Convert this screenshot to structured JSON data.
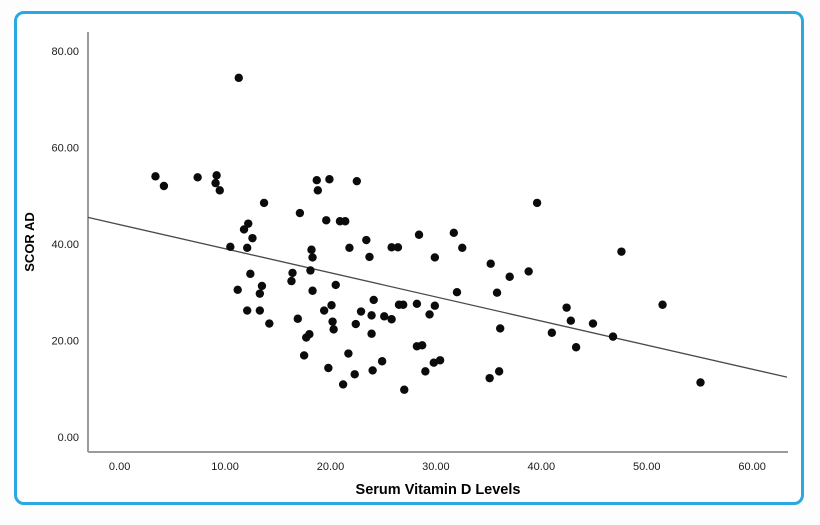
{
  "figure": {
    "border_color": "#29a9e0",
    "background": "#ffffff"
  },
  "chart_data": {
    "type": "scatter",
    "title": "",
    "xlabel": "Serum Vitamin D Levels",
    "ylabel": "SCOR AD",
    "grid": false,
    "legend": null,
    "point_color": "#0b0b0b",
    "axis_color": "#9b9b9b",
    "xlim": [
      -3.0,
      63.4
    ],
    "ylim": [
      -3.1,
      83.9
    ],
    "x_ticks": {
      "values": [
        0,
        10,
        20,
        30,
        40,
        50,
        60
      ],
      "labels": [
        "0.00",
        "10.00",
        "20.00",
        "30.00",
        "40.00",
        "50.00",
        "60.00"
      ]
    },
    "y_ticks": {
      "values": [
        0,
        20,
        40,
        60,
        80
      ],
      "labels": [
        "0.00",
        "20.00",
        "40.00",
        "60.00",
        "80.00"
      ]
    },
    "trend_line": {
      "x1": -3.0,
      "y1": 45.5,
      "x2": 63.3,
      "y2": 12.4,
      "color": "#4a4a4a"
    },
    "points": [
      [
        3.4,
        54.0
      ],
      [
        4.2,
        52.0
      ],
      [
        7.4,
        53.8
      ],
      [
        9.2,
        54.2
      ],
      [
        9.1,
        52.6
      ],
      [
        9.5,
        51.1
      ],
      [
        11.3,
        74.4
      ],
      [
        10.5,
        39.4
      ],
      [
        12.1,
        39.2
      ],
      [
        11.8,
        43.0
      ],
      [
        12.2,
        44.2
      ],
      [
        12.6,
        41.2
      ],
      [
        13.7,
        48.5
      ],
      [
        17.1,
        46.4
      ],
      [
        11.2,
        30.5
      ],
      [
        12.4,
        33.8
      ],
      [
        13.5,
        31.3
      ],
      [
        13.3,
        29.7
      ],
      [
        12.1,
        26.2
      ],
      [
        13.3,
        26.2
      ],
      [
        14.2,
        23.5
      ],
      [
        16.4,
        34.0
      ],
      [
        16.3,
        32.3
      ],
      [
        16.9,
        24.5
      ],
      [
        17.7,
        20.6
      ],
      [
        18.0,
        21.3
      ],
      [
        17.5,
        16.9
      ],
      [
        18.3,
        30.3
      ],
      [
        18.1,
        34.5
      ],
      [
        18.2,
        38.8
      ],
      [
        18.3,
        37.2
      ],
      [
        18.7,
        53.2
      ],
      [
        19.9,
        53.4
      ],
      [
        18.8,
        51.1
      ],
      [
        19.6,
        44.9
      ],
      [
        20.9,
        44.7
      ],
      [
        21.4,
        44.7
      ],
      [
        19.4,
        26.2
      ],
      [
        20.1,
        27.3
      ],
      [
        20.2,
        23.9
      ],
      [
        20.3,
        22.3
      ],
      [
        20.5,
        31.5
      ],
      [
        19.8,
        14.3
      ],
      [
        21.2,
        10.9
      ],
      [
        21.7,
        17.3
      ],
      [
        21.8,
        39.2
      ],
      [
        22.5,
        53.0
      ],
      [
        22.4,
        23.4
      ],
      [
        22.9,
        26.0
      ],
      [
        23.9,
        25.2
      ],
      [
        23.4,
        40.8
      ],
      [
        23.7,
        37.3
      ],
      [
        23.9,
        21.4
      ],
      [
        22.3,
        13.0
      ],
      [
        24.0,
        13.8
      ],
      [
        24.1,
        28.4
      ],
      [
        24.9,
        15.7
      ],
      [
        25.1,
        25.0
      ],
      [
        25.8,
        24.4
      ],
      [
        25.8,
        39.3
      ],
      [
        26.4,
        39.3
      ],
      [
        26.5,
        27.4
      ],
      [
        26.9,
        27.4
      ],
      [
        27.0,
        9.8
      ],
      [
        28.2,
        27.6
      ],
      [
        28.4,
        41.9
      ],
      [
        28.2,
        18.8
      ],
      [
        28.7,
        19.0
      ],
      [
        29.0,
        13.6
      ],
      [
        29.4,
        25.4
      ],
      [
        29.9,
        27.2
      ],
      [
        29.8,
        15.4
      ],
      [
        30.4,
        15.9
      ],
      [
        29.9,
        37.2
      ],
      [
        31.7,
        42.3
      ],
      [
        32.5,
        39.2
      ],
      [
        32.0,
        30.0
      ],
      [
        35.2,
        35.9
      ],
      [
        35.8,
        29.9
      ],
      [
        36.1,
        22.5
      ],
      [
        35.1,
        12.2
      ],
      [
        36.0,
        13.6
      ],
      [
        37.0,
        33.2
      ],
      [
        38.8,
        34.3
      ],
      [
        39.6,
        48.5
      ],
      [
        41.0,
        21.6
      ],
      [
        42.4,
        26.8
      ],
      [
        42.8,
        24.1
      ],
      [
        43.3,
        18.6
      ],
      [
        44.9,
        23.5
      ],
      [
        46.8,
        20.8
      ],
      [
        47.6,
        38.4
      ],
      [
        51.5,
        27.4
      ],
      [
        55.1,
        11.3
      ]
    ]
  }
}
